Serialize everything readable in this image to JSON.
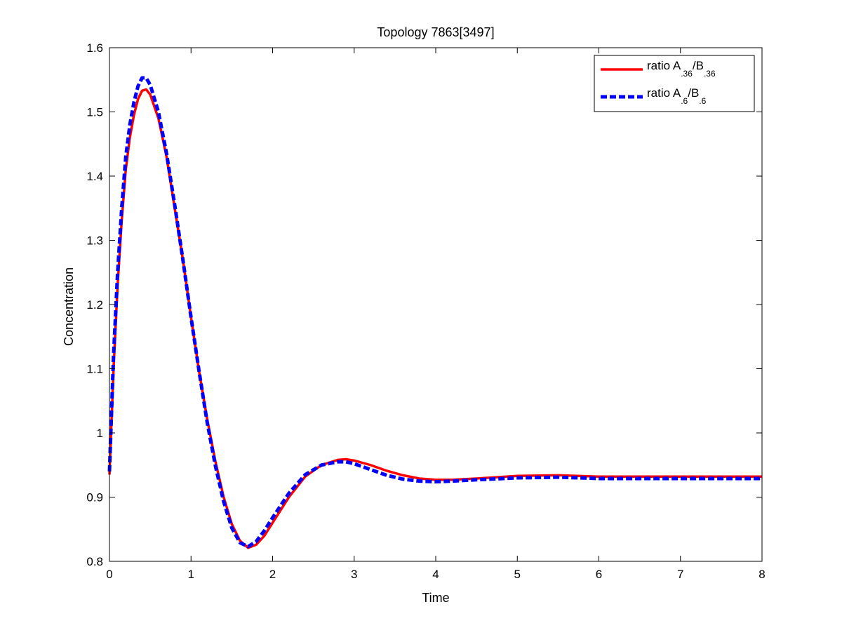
{
  "chart_data": {
    "type": "line",
    "title": "Topology 7863[3497]",
    "xlabel": "Time",
    "ylabel": "Concentration",
    "xlim": [
      0,
      8
    ],
    "ylim": [
      0.8,
      1.6
    ],
    "xticks": [
      "0",
      "1",
      "2",
      "3",
      "4",
      "5",
      "6",
      "7",
      "8"
    ],
    "yticks": [
      "0.8",
      "0.9",
      "1",
      "1.1",
      "1.2",
      "1.3",
      "1.4",
      "1.5",
      "1.6"
    ],
    "grid": false,
    "legend_position": "top-right",
    "series": [
      {
        "legend": {
          "prefix": "ratio A",
          "sub1": ".36",
          "mid": "/B",
          "sub2": ".36"
        },
        "color": "#ff0000",
        "style": "solid",
        "points": [
          [
            0,
            0.935
          ],
          [
            0.05,
            1.1
          ],
          [
            0.1,
            1.23
          ],
          [
            0.15,
            1.33
          ],
          [
            0.2,
            1.41
          ],
          [
            0.25,
            1.46
          ],
          [
            0.3,
            1.495
          ],
          [
            0.35,
            1.52
          ],
          [
            0.4,
            1.533
          ],
          [
            0.45,
            1.535
          ],
          [
            0.5,
            1.527
          ],
          [
            0.6,
            1.49
          ],
          [
            0.7,
            1.43
          ],
          [
            0.8,
            1.35
          ],
          [
            0.9,
            1.27
          ],
          [
            1.0,
            1.18
          ],
          [
            1.1,
            1.095
          ],
          [
            1.2,
            1.02
          ],
          [
            1.3,
            0.955
          ],
          [
            1.4,
            0.9
          ],
          [
            1.5,
            0.858
          ],
          [
            1.6,
            0.832
          ],
          [
            1.7,
            0.821
          ],
          [
            1.8,
            0.826
          ],
          [
            1.9,
            0.84
          ],
          [
            2.0,
            0.86
          ],
          [
            2.2,
            0.9
          ],
          [
            2.4,
            0.932
          ],
          [
            2.6,
            0.95
          ],
          [
            2.8,
            0.958
          ],
          [
            2.9,
            0.959
          ],
          [
            3.0,
            0.957
          ],
          [
            3.2,
            0.95
          ],
          [
            3.4,
            0.941
          ],
          [
            3.6,
            0.934
          ],
          [
            3.8,
            0.929
          ],
          [
            4.0,
            0.927
          ],
          [
            4.2,
            0.927
          ],
          [
            4.5,
            0.929
          ],
          [
            5.0,
            0.933
          ],
          [
            5.5,
            0.934
          ],
          [
            6.0,
            0.932
          ],
          [
            7.0,
            0.932
          ],
          [
            8.0,
            0.932
          ]
        ]
      },
      {
        "legend": {
          "prefix": "ratio A",
          "sub1": ".6",
          "mid": "/B",
          "sub2": ".6"
        },
        "color": "#0000ff",
        "style": "dashed",
        "points": [
          [
            0,
            0.94
          ],
          [
            0.05,
            1.12
          ],
          [
            0.1,
            1.25
          ],
          [
            0.15,
            1.35
          ],
          [
            0.2,
            1.43
          ],
          [
            0.25,
            1.48
          ],
          [
            0.3,
            1.515
          ],
          [
            0.35,
            1.54
          ],
          [
            0.4,
            1.553
          ],
          [
            0.45,
            1.553
          ],
          [
            0.5,
            1.542
          ],
          [
            0.6,
            1.5
          ],
          [
            0.7,
            1.435
          ],
          [
            0.8,
            1.355
          ],
          [
            0.9,
            1.27
          ],
          [
            1.0,
            1.18
          ],
          [
            1.1,
            1.095
          ],
          [
            1.2,
            1.015
          ],
          [
            1.3,
            0.948
          ],
          [
            1.4,
            0.893
          ],
          [
            1.5,
            0.852
          ],
          [
            1.6,
            0.829
          ],
          [
            1.7,
            0.823
          ],
          [
            1.8,
            0.831
          ],
          [
            1.9,
            0.848
          ],
          [
            2.0,
            0.868
          ],
          [
            2.2,
            0.906
          ],
          [
            2.4,
            0.935
          ],
          [
            2.6,
            0.95
          ],
          [
            2.8,
            0.955
          ],
          [
            2.9,
            0.955
          ],
          [
            3.0,
            0.952
          ],
          [
            3.2,
            0.943
          ],
          [
            3.4,
            0.934
          ],
          [
            3.6,
            0.928
          ],
          [
            3.8,
            0.925
          ],
          [
            4.0,
            0.924
          ],
          [
            4.2,
            0.925
          ],
          [
            4.5,
            0.927
          ],
          [
            5.0,
            0.93
          ],
          [
            5.5,
            0.931
          ],
          [
            6.0,
            0.929
          ],
          [
            7.0,
            0.929
          ],
          [
            8.0,
            0.929
          ]
        ]
      }
    ]
  }
}
